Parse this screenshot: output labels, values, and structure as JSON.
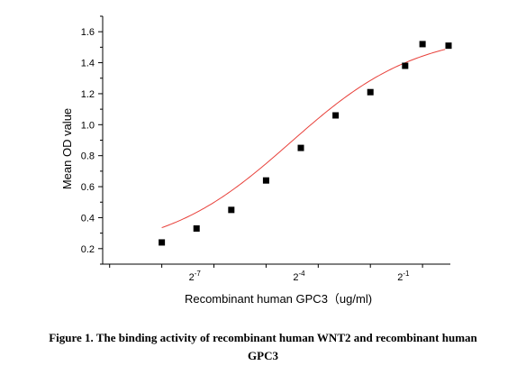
{
  "chart_data": {
    "type": "scatter",
    "xlabel": "Recombinant human  GPC3（ug/ml)",
    "ylabel": "Mean OD value",
    "x_scale": "log2",
    "x_tick_labels": [
      {
        "base": "2",
        "exp": "-7",
        "x_log2": -7
      },
      {
        "base": "2",
        "exp": "-4",
        "x_log2": -4
      },
      {
        "base": "2",
        "exp": "-1",
        "x_log2": -1
      }
    ],
    "xlim_log2": [
      -9.7,
      0.3
    ],
    "ylim": [
      0.1,
      1.7
    ],
    "y_ticks": [
      "0.2",
      "0.4",
      "0.6",
      "0.8",
      "1.0",
      "1.2",
      "1.4",
      "1.6"
    ],
    "series": [
      {
        "points": [
          {
            "x_log2": -8.0,
            "y": 0.24
          },
          {
            "x_log2": -7.0,
            "y": 0.33
          },
          {
            "x_log2": -6.0,
            "y": 0.45
          },
          {
            "x_log2": -5.0,
            "y": 0.64
          },
          {
            "x_log2": -4.0,
            "y": 0.85
          },
          {
            "x_log2": -3.0,
            "y": 1.06
          },
          {
            "x_log2": -2.0,
            "y": 1.21
          },
          {
            "x_log2": -1.0,
            "y": 1.38
          },
          {
            "x_log2": 0.0,
            "y": 1.52
          },
          {
            "x_log2": -1.0,
            "y": 1.38
          }
        ]
      }
    ],
    "fit": {
      "type": "sigmoid",
      "bottom": 0.17,
      "top": 1.6,
      "x50_log2": -4.3,
      "hill": 0.55
    },
    "marker_color": "#000000",
    "fit_color": "#e8403a",
    "grid": false
  },
  "caption": {
    "line1": "Figure 1. The binding activity of    recombinant human WNT2 and recombinant human",
    "line2": "GPC3"
  }
}
